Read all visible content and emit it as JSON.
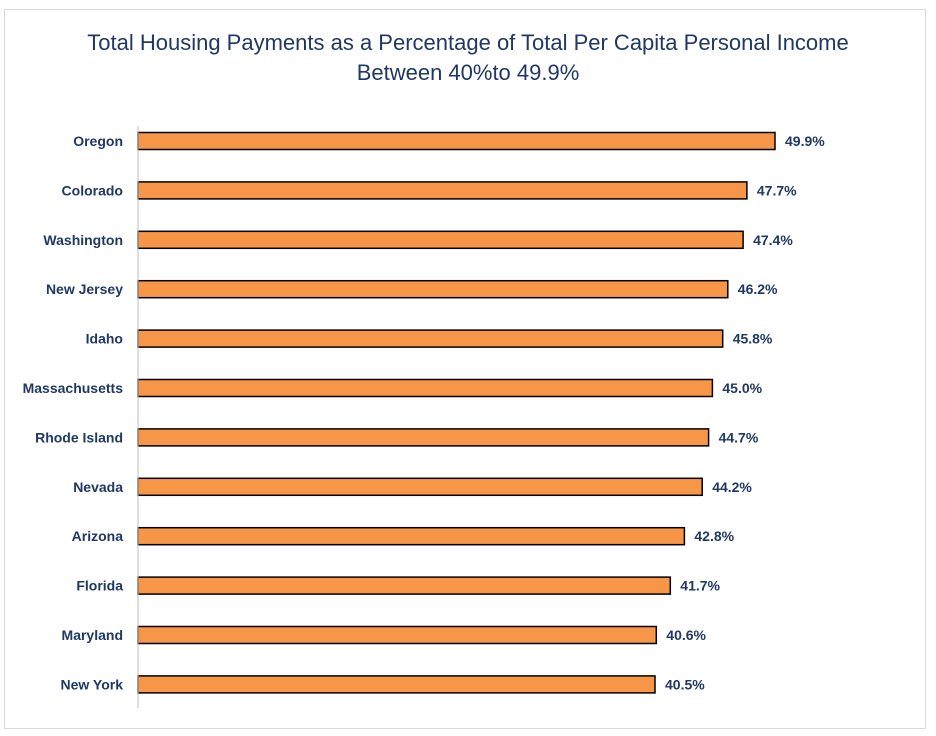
{
  "chart_data": {
    "type": "bar",
    "orientation": "horizontal",
    "title": "Total Housing Payments as a Percentage of Total Per Capita Personal Income  Between 40%to 49.9%",
    "xlabel": "",
    "ylabel": "",
    "categories": [
      "Oregon",
      "Colorado",
      "Washington",
      "New Jersey",
      "Idaho",
      "Massachusetts",
      "Rhode Island",
      "Nevada",
      "Arizona",
      "Florida",
      "Maryland",
      "New York"
    ],
    "values": [
      49.9,
      47.7,
      47.4,
      46.2,
      45.8,
      45.0,
      44.7,
      44.2,
      42.8,
      41.7,
      40.6,
      40.5
    ],
    "value_labels": [
      "49.9%",
      "47.7%",
      "47.4%",
      "46.2%",
      "45.8%",
      "45.0%",
      "44.7%",
      "44.2%",
      "42.8%",
      "41.7%",
      "40.6%",
      "40.5%"
    ],
    "xlim": [
      0,
      49.9
    ],
    "grid": false,
    "legend": "none",
    "colors": {
      "bar_fill": "#f79646",
      "bar_stroke": "#000000",
      "text": "#1f3864",
      "axis": "#bfbfbf",
      "frame": "#d9d9d9"
    }
  }
}
